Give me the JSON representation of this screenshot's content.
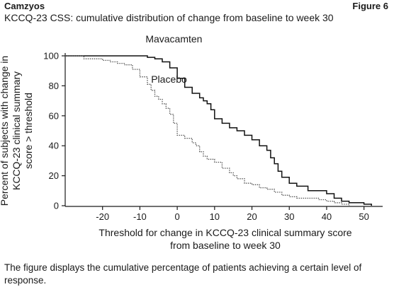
{
  "header": {
    "brand": "Camzyos",
    "figure_label": "Figure 6"
  },
  "caption": "The figure displays the cumulative percentage of patients achieving a certain level of response.",
  "chart_data": {
    "type": "line",
    "title": "KCCQ-23 CSS: cumulative distribution of change from baseline to week 30",
    "xlabel": [
      "Threshold for change in KCCQ-23 clinical summary score",
      "from baseline to week 30"
    ],
    "ylabel": [
      "Percent of subjects with change in",
      "KCCQ-23 clinical summary",
      "score > threshold"
    ],
    "xlim": [
      -30,
      55
    ],
    "ylim": [
      0,
      100
    ],
    "x_ticks": [
      -20,
      -10,
      0,
      10,
      20,
      30,
      40,
      50
    ],
    "y_ticks": [
      0,
      20,
      40,
      60,
      80,
      100
    ],
    "grid": false,
    "series": [
      {
        "name": "Mavacamten",
        "style": "solid",
        "color": "#111111",
        "points": [
          [
            -30,
            100
          ],
          [
            -9,
            100
          ],
          [
            -8,
            99
          ],
          [
            -6,
            98
          ],
          [
            -4,
            96
          ],
          [
            -2,
            92
          ],
          [
            0,
            85
          ],
          [
            2,
            79
          ],
          [
            4,
            75
          ],
          [
            6,
            72
          ],
          [
            7,
            70
          ],
          [
            8,
            68
          ],
          [
            9,
            64
          ],
          [
            10,
            58
          ],
          [
            12,
            55
          ],
          [
            14,
            52
          ],
          [
            16,
            50
          ],
          [
            18,
            47
          ],
          [
            20,
            44
          ],
          [
            22,
            40
          ],
          [
            24,
            37
          ],
          [
            25,
            32
          ],
          [
            26,
            28
          ],
          [
            27,
            23
          ],
          [
            28,
            19
          ],
          [
            30,
            15
          ],
          [
            32,
            13
          ],
          [
            35,
            10
          ],
          [
            40,
            8
          ],
          [
            42,
            5
          ],
          [
            44,
            3
          ],
          [
            46,
            2
          ],
          [
            50,
            1
          ],
          [
            52,
            0
          ]
        ]
      },
      {
        "name": "Placebo",
        "style": "dotted",
        "color": "#555555",
        "points": [
          [
            -30,
            100
          ],
          [
            -25,
            98
          ],
          [
            -20,
            97
          ],
          [
            -18,
            96
          ],
          [
            -16,
            95
          ],
          [
            -14,
            94
          ],
          [
            -12,
            91
          ],
          [
            -10,
            86
          ],
          [
            -8,
            81
          ],
          [
            -7,
            77
          ],
          [
            -6,
            73
          ],
          [
            -5,
            71
          ],
          [
            -4,
            68
          ],
          [
            -3,
            65
          ],
          [
            -2,
            61
          ],
          [
            -1,
            55
          ],
          [
            0,
            47
          ],
          [
            2,
            45
          ],
          [
            4,
            42
          ],
          [
            5,
            40
          ],
          [
            6,
            36
          ],
          [
            7,
            33
          ],
          [
            8,
            31
          ],
          [
            10,
            29
          ],
          [
            12,
            25
          ],
          [
            14,
            22
          ],
          [
            15,
            20
          ],
          [
            16,
            18
          ],
          [
            18,
            15
          ],
          [
            20,
            14
          ],
          [
            22,
            12
          ],
          [
            24,
            11
          ],
          [
            26,
            9
          ],
          [
            28,
            7
          ],
          [
            30,
            6
          ],
          [
            32,
            5
          ],
          [
            35,
            5
          ],
          [
            38,
            4
          ],
          [
            40,
            3
          ],
          [
            42,
            2
          ],
          [
            44,
            1
          ],
          [
            46,
            0
          ]
        ]
      }
    ],
    "annotations": [
      {
        "text": "Mavacamten",
        "x": -8.5,
        "y": 109
      },
      {
        "text": "Placebo",
        "x": -7,
        "y": 82
      }
    ]
  }
}
